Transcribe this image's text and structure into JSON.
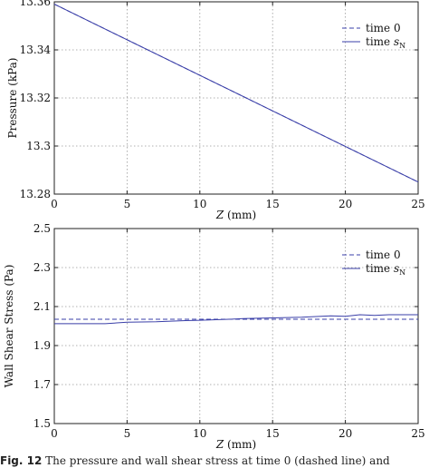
{
  "chart_data": [
    {
      "type": "line",
      "xlabel_var": "Z",
      "xlabel_unit": "(mm)",
      "ylabel": "Pressure (kPa)",
      "xlim": [
        0,
        25
      ],
      "ylim": [
        13.28,
        13.36
      ],
      "xticks": [
        "0",
        "5",
        "10",
        "15",
        "20",
        "25"
      ],
      "yticks": [
        "13.28",
        "13.3",
        "13.32",
        "13.34",
        "13.36"
      ],
      "grid": true,
      "legend_position": "top-right",
      "series": [
        {
          "name": "time 0",
          "style": "dashed",
          "color": "#3a3fa8",
          "x": [
            0,
            25
          ],
          "y": [
            13.359,
            13.285
          ]
        },
        {
          "name": "time s_N",
          "style": "solid",
          "color": "#3a3fa8",
          "x": [
            0,
            25
          ],
          "y": [
            13.359,
            13.285
          ]
        }
      ]
    },
    {
      "type": "line",
      "xlabel_var": "Z",
      "xlabel_unit": "(mm)",
      "ylabel": "Wall Shear Stress (Pa)",
      "xlim": [
        0,
        25
      ],
      "ylim": [
        1.5,
        2.5
      ],
      "xticks": [
        "0",
        "5",
        "10",
        "15",
        "20",
        "25"
      ],
      "yticks": [
        "1.5",
        "1.7",
        "1.9",
        "2.1",
        "2.3",
        "2.5"
      ],
      "grid": true,
      "legend_position": "top-right",
      "series": [
        {
          "name": "time 0",
          "style": "dashed",
          "color": "#3a3fa8",
          "x": [
            0,
            25
          ],
          "y": [
            2.035,
            2.035
          ]
        },
        {
          "name": "time s_N",
          "style": "solid",
          "color": "#3a3fa8",
          "x": [
            0,
            3.5,
            5,
            7,
            9,
            10,
            12,
            13,
            15,
            17,
            19,
            20,
            21,
            22,
            23,
            25
          ],
          "y": [
            2.012,
            2.012,
            2.02,
            2.022,
            2.028,
            2.03,
            2.035,
            2.038,
            2.042,
            2.045,
            2.052,
            2.05,
            2.058,
            2.055,
            2.058,
            2.058
          ]
        }
      ]
    }
  ],
  "caption": {
    "label": "Fig. 12",
    "text": "  The pressure and wall shear stress at time 0 (dashed line) and"
  }
}
